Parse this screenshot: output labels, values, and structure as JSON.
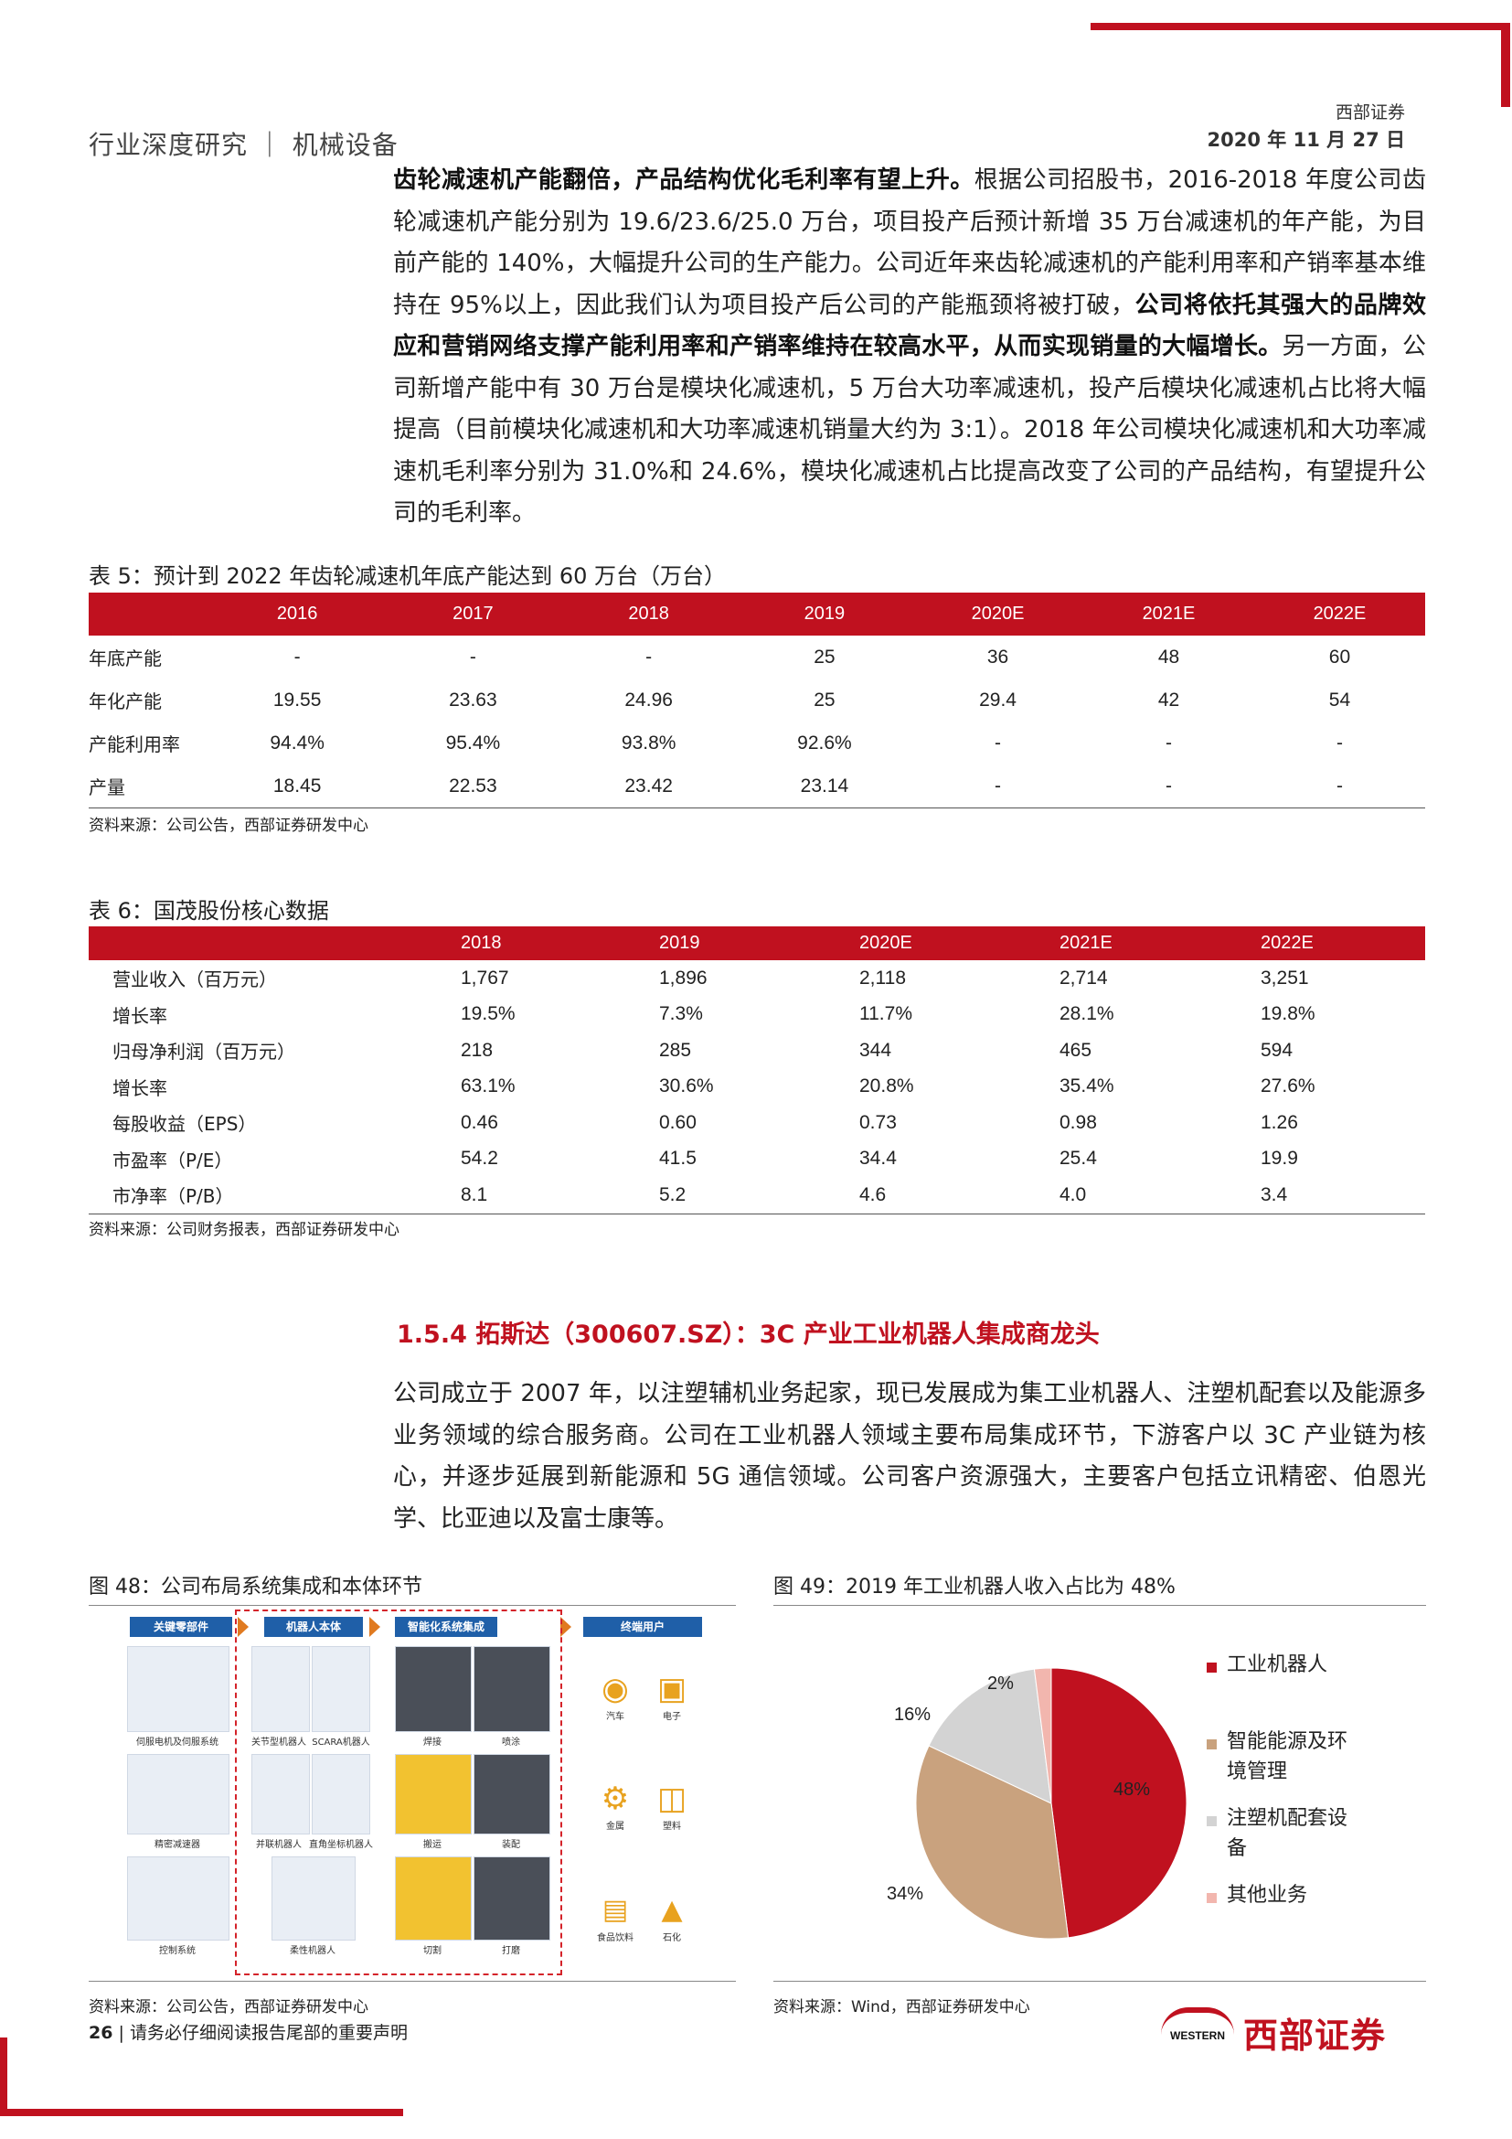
{
  "header": {
    "left_title": "行业深度研究 ｜ 机械设备",
    "broker": "西部证券",
    "date": "2020 年 11 月 27 日"
  },
  "para1": {
    "bold_lead": "齿轮减速机产能翻倍，产品结构优化毛利率有望上升。",
    "text_a": "根据公司招股书，2016-2018 年度公司齿轮减速机产能分别为 19.6/23.6/25.0 万台，项目投产后预计新增 35 万台减速机的年产能，为目前产能的 140%，大幅提升公司的生产能力。公司近年来齿轮减速机的产能利用率和产销率基本维持在 95%以上，因此我们认为项目投产后公司的产能瓶颈将被打破，",
    "bold_mid": "公司将依托其强大的品牌效应和营销网络支撑产能利用率和产销率维持在较高水平，从而实现销量的大幅增长。",
    "text_b": "另一方面，公司新增产能中有 30 万台是模块化减速机，5 万台大功率减速机，投产后模块化减速机占比将大幅提高（目前模块化减速机和大功率减速机销量大约为 3:1）。2018 年公司模块化减速机和大功率减速机毛利率分别为 31.0%和 24.6%，模块化减速机占比提高改变了公司的产品结构，有望提升公司的毛利率。"
  },
  "table5": {
    "caption": "表 5：预计到 2022 年齿轮减速机年底产能达到 60 万台（万台）",
    "headers": [
      "",
      "2016",
      "2017",
      "2018",
      "2019",
      "2020E",
      "2021E",
      "2022E"
    ],
    "rows": [
      [
        "年底产能",
        "-",
        "-",
        "-",
        "25",
        "36",
        "48",
        "60"
      ],
      [
        "年化产能",
        "19.55",
        "23.63",
        "24.96",
        "25",
        "29.4",
        "42",
        "54"
      ],
      [
        "产能利用率",
        "94.4%",
        "95.4%",
        "93.8%",
        "92.6%",
        "-",
        "-",
        "-"
      ],
      [
        "产量",
        "18.45",
        "22.53",
        "23.42",
        "23.14",
        "-",
        "-",
        "-"
      ]
    ],
    "source": "资料来源：公司公告，西部证券研发中心"
  },
  "table6": {
    "caption": "表 6：国茂股份核心数据",
    "headers": [
      "",
      "2018",
      "2019",
      "2020E",
      "2021E",
      "2022E"
    ],
    "rows": [
      [
        "营业收入（百万元）",
        "1,767",
        "1,896",
        "2,118",
        "2,714",
        "3,251"
      ],
      [
        "增长率",
        "19.5%",
        "7.3%",
        "11.7%",
        "28.1%",
        "19.8%"
      ],
      [
        "归母净利润（百万元）",
        "218",
        "285",
        "344",
        "465",
        "594"
      ],
      [
        "增长率",
        "63.1%",
        "30.6%",
        "20.8%",
        "35.4%",
        "27.6%"
      ],
      [
        "每股收益（EPS）",
        "0.46",
        "0.60",
        "0.73",
        "0.98",
        "1.26"
      ],
      [
        "市盈率（P/E）",
        "54.2",
        "41.5",
        "34.4",
        "25.4",
        "19.9"
      ],
      [
        "市净率（P/B）",
        "8.1",
        "5.2",
        "4.6",
        "4.0",
        "3.4"
      ]
    ],
    "source": "资料来源：公司财务报表，西部证券研发中心"
  },
  "section": {
    "title": "1.5.4 拓斯达（300607.SZ）：3C 产业工业机器人集成商龙头",
    "body": "公司成立于 2007 年，以注塑辅机业务起家，现已发展成为集工业机器人、注塑机配套以及能源多业务领域的综合服务商。公司在工业机器人领域主要布局集成环节，下游客户以 3C 产业链为核心，并逐步延展到新能源和 5G 通信领域。公司客户资源强大，主要客户包括立讯精密、伯恩光学、比亚迪以及富士康等。"
  },
  "fig48": {
    "caption": "图 48：公司布局系统集成和本体环节",
    "col_headers": [
      "关键零部件",
      "机器人本体",
      "智能化系统集成",
      "终端用户"
    ],
    "labels_parts": [
      "伺服电机及伺服系统",
      "精密减速器",
      "控制系统"
    ],
    "labels_body": [
      "关节型机器人",
      "SCARA机器人",
      "并联机器人",
      "直角坐标机器人",
      "柔性机器人"
    ],
    "labels_sys": [
      "焊接",
      "喷涂",
      "搬运",
      "装配",
      "切割",
      "打磨"
    ],
    "labels_users": [
      "汽车",
      "电子",
      "金属",
      "塑料",
      "食品饮料",
      "石化"
    ],
    "source": "资料来源：公司公告，西部证券研发中心"
  },
  "fig49": {
    "caption": "图 49：2019 年工业机器人收入占比为 48%",
    "source": "资料来源：Wind，西部证券研发中心"
  },
  "chart_data": {
    "type": "pie",
    "categories": [
      "工业机器人",
      "智能能源及环境管理",
      "注塑机配套设备",
      "其他业务"
    ],
    "legend_lines": [
      [
        "工业机器人"
      ],
      [
        "智能能源及环",
        "境管理"
      ],
      [
        "注塑机配套设",
        "备"
      ],
      [
        "其他业务"
      ]
    ],
    "values": [
      48,
      34,
      16,
      2
    ],
    "labels": [
      "48%",
      "34%",
      "16%",
      "2%"
    ],
    "colors": [
      "#c0111f",
      "#c9a27e",
      "#d3d3d3",
      "#f2b6ae"
    ],
    "legend_position": "right"
  },
  "footer": {
    "page": "26",
    "note": "请务必仔细阅读报告尾部的重要声明",
    "logo_en": "WESTERN",
    "logo_cn": "西部证券"
  }
}
